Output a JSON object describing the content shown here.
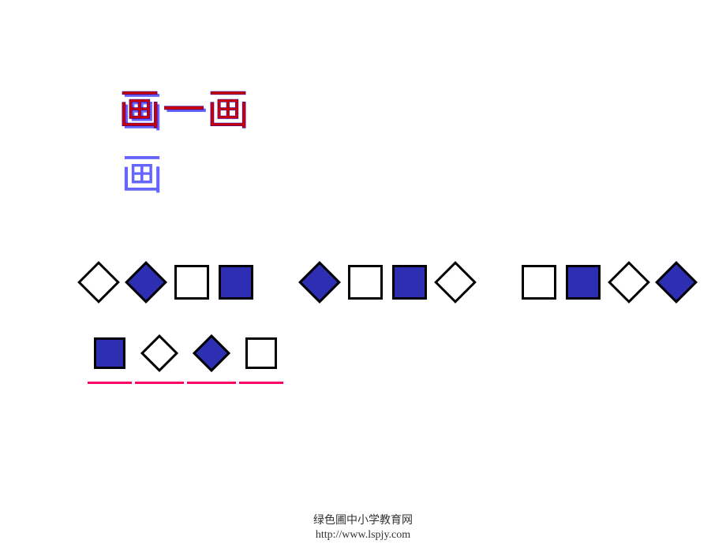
{
  "title": "画一画",
  "colors": {
    "fill": "#2e2eb3",
    "stroke": "#000000",
    "underline": "#ff0066",
    "title_main": "#cc0000",
    "title_shadow": "#6666ff",
    "background": "#ffffff"
  },
  "row1": {
    "groups": [
      [
        {
          "shape": "diamond",
          "filled": false
        },
        {
          "shape": "diamond",
          "filled": true
        },
        {
          "shape": "square",
          "filled": false
        },
        {
          "shape": "square",
          "filled": true
        }
      ],
      [
        {
          "shape": "diamond",
          "filled": true
        },
        {
          "shape": "square",
          "filled": false
        },
        {
          "shape": "square",
          "filled": true
        },
        {
          "shape": "diamond",
          "filled": false
        }
      ],
      [
        {
          "shape": "square",
          "filled": false
        },
        {
          "shape": "square",
          "filled": true
        },
        {
          "shape": "diamond",
          "filled": false
        },
        {
          "shape": "diamond",
          "filled": true
        }
      ]
    ]
  },
  "row2": {
    "items": [
      {
        "shape": "square",
        "filled": true,
        "underlined": true
      },
      {
        "shape": "diamond",
        "filled": false,
        "underlined": true
      },
      {
        "shape": "diamond",
        "filled": true,
        "underlined": true
      },
      {
        "shape": "square",
        "filled": false,
        "underlined": true
      }
    ]
  },
  "footer": {
    "line1": "绿色圃中小学教育网",
    "line2": "http://www.lspjy.com"
  }
}
